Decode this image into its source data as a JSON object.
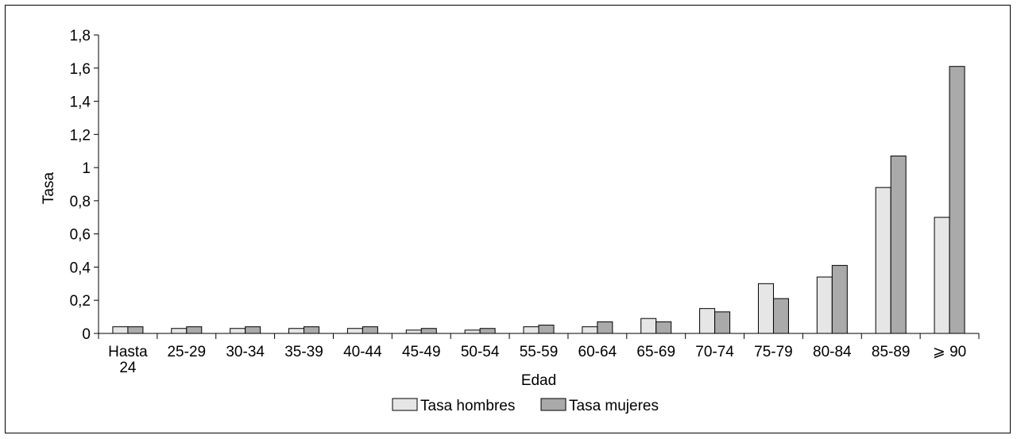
{
  "chart_data": {
    "type": "bar",
    "categories": [
      [
        "Hasta",
        "24"
      ],
      [
        "25-29"
      ],
      [
        "30-34"
      ],
      [
        "35-39"
      ],
      [
        "40-44"
      ],
      [
        "45-49"
      ],
      [
        "50-54"
      ],
      [
        "55-59"
      ],
      [
        "60-64"
      ],
      [
        "65-69"
      ],
      [
        "70-74"
      ],
      [
        "75-79"
      ],
      [
        "80-84"
      ],
      [
        "85-89"
      ],
      [
        "⩾ 90"
      ]
    ],
    "series": [
      {
        "name": "Tasa hombres",
        "color": "#e6e6e6",
        "values": [
          0.04,
          0.03,
          0.03,
          0.03,
          0.03,
          0.02,
          0.02,
          0.04,
          0.04,
          0.09,
          0.15,
          0.3,
          0.34,
          0.88,
          0.7
        ]
      },
      {
        "name": "Tasa mujeres",
        "color": "#aaaaaa",
        "values": [
          0.04,
          0.04,
          0.04,
          0.04,
          0.04,
          0.03,
          0.03,
          0.05,
          0.07,
          0.07,
          0.13,
          0.21,
          0.41,
          1.07,
          1.61
        ]
      }
    ],
    "ylim": [
      0,
      1.8
    ],
    "yticks": [
      0,
      0.2,
      0.4,
      0.6,
      0.8,
      1,
      1.2,
      1.4,
      1.6,
      1.8
    ],
    "ytick_labels": [
      "0",
      "0,2",
      "0,4",
      "0,6",
      "0,8",
      "1",
      "1,2",
      "1,4",
      "1,6",
      "1,8"
    ],
    "xlabel": "Edad",
    "ylabel": "Tasa",
    "grid": false,
    "legend_position": "bottom-center"
  }
}
